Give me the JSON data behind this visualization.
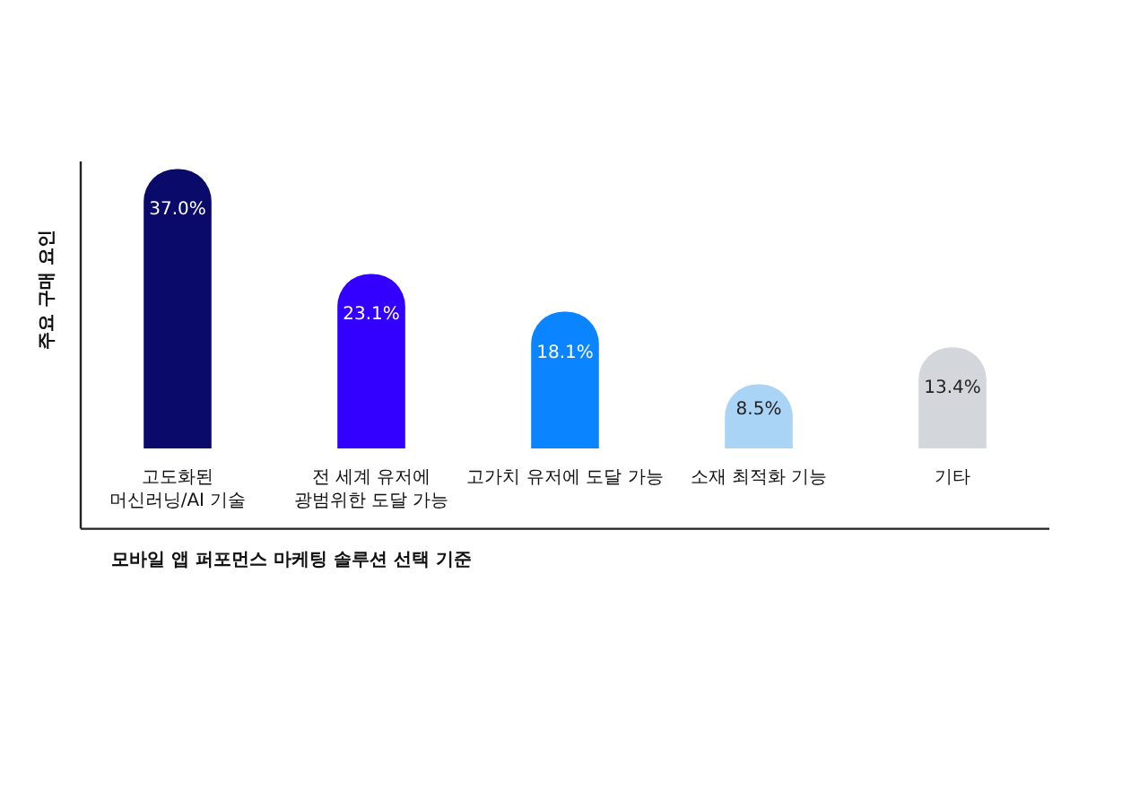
{
  "chart_data": {
    "type": "bar",
    "xlabel": "모바일 앱 퍼포먼스 마케팅 솔루션 선택 기준",
    "ylabel": "주요 구매 요인",
    "categories": [
      "고도화된\n머신러닝/AI 기술",
      "전 세계 유저에\n광범위한 도달 가능",
      "고가치 유저에 도달 가능",
      "소재 최적화 기능",
      "기타"
    ],
    "values": [
      37.0,
      23.1,
      18.1,
      8.5,
      13.4
    ],
    "value_labels": [
      "37.0%",
      "23.1%",
      "18.1%",
      "8.5%",
      "13.4%"
    ],
    "colors": [
      "#0a0a6b",
      "#3300ff",
      "#0a84ff",
      "#a9d4f5",
      "#d3d6da"
    ],
    "ylim": [
      0,
      38
    ],
    "legend": false
  }
}
